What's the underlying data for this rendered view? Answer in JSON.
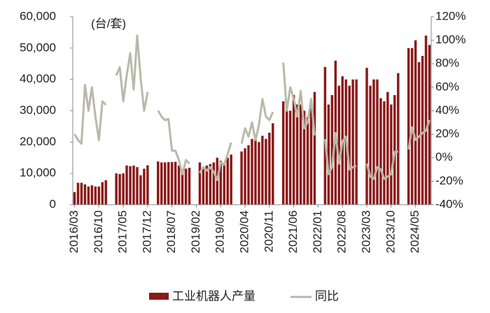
{
  "chart_data": {
    "type": "bar-line",
    "annotation": "(台/套)",
    "categories": [
      "2016/03",
      null,
      null,
      null,
      null,
      null,
      null,
      "2016/10",
      null,
      null,
      null,
      null,
      null,
      null,
      "2017/05",
      null,
      null,
      null,
      null,
      null,
      null,
      "2017/12",
      null,
      null,
      null,
      null,
      null,
      null,
      "2018/07",
      null,
      null,
      null,
      null,
      null,
      null,
      "2019/02",
      null,
      null,
      null,
      null,
      null,
      null,
      "2019/09",
      null,
      null,
      null,
      null,
      null,
      null,
      "2020/04",
      null,
      null,
      null,
      null,
      null,
      null,
      "2020/11",
      null,
      null,
      null,
      null,
      null,
      null,
      "2021/06",
      null,
      null,
      null,
      null,
      null,
      null,
      "2022/01",
      null,
      null,
      null,
      null,
      null,
      null,
      "2022/08",
      null,
      null,
      null,
      null,
      null,
      null,
      "2023/03",
      null,
      null,
      null,
      null,
      null,
      null,
      "2023/10",
      null,
      null,
      null,
      null,
      null,
      null,
      "2024/05",
      null,
      null,
      null,
      null
    ],
    "series": [
      {
        "name": "工业机器人产量",
        "color": "#8b1a1a",
        "type": "bar",
        "values": [
          4000,
          7000,
          7000,
          6500,
          5800,
          6200,
          5800,
          5800,
          7200,
          7800,
          null,
          null,
          10000,
          9800,
          10000,
          12500,
          12300,
          12500,
          12000,
          9400,
          11500,
          12600,
          null,
          null,
          13800,
          13500,
          13500,
          13600,
          13600,
          13700,
          12500,
          11000,
          11500,
          11800,
          null,
          null,
          13500,
          12000,
          12500,
          13000,
          13500,
          15000,
          14000,
          13000,
          15000,
          16000,
          null,
          null,
          17000,
          18000,
          19000,
          21000,
          21000,
          20000,
          22000,
          21000,
          23000,
          26000,
          null,
          null,
          33000,
          31000,
          30000,
          35000,
          32000,
          32000,
          30000,
          28000,
          31000,
          36000,
          null,
          null,
          44000,
          32000,
          35000,
          46000,
          38000,
          41000,
          40000,
          38000,
          40000,
          40000,
          null,
          null,
          43700,
          38000,
          40000,
          40000,
          34000,
          33000,
          36000,
          32000,
          35000,
          42000,
          null,
          null,
          50000,
          50000,
          52500,
          45500,
          47500,
          54000,
          51000
        ]
      },
      {
        "name": "同比",
        "color": "#b9b9a8",
        "type": "line",
        "axis": "y2",
        "values": [
          20,
          15,
          12,
          62,
          40,
          60,
          35,
          15,
          48,
          45,
          null,
          null,
          70,
          77,
          48,
          70,
          89,
          58,
          104,
          68,
          40,
          56,
          null,
          null,
          40,
          35,
          32,
          33,
          6,
          6,
          -2,
          -14,
          -2,
          -5,
          null,
          null,
          -13,
          -8,
          -11,
          -8,
          -12,
          -19,
          -4,
          -6,
          3,
          13,
          null,
          null,
          12,
          25,
          18,
          30,
          15,
          28,
          50,
          35,
          32,
          39,
          null,
          null,
          81,
          40,
          60,
          50,
          35,
          57,
          25,
          30,
          50,
          19,
          null,
          null,
          16,
          -14,
          -8,
          21,
          -5,
          14,
          18,
          -10,
          -8,
          -7,
          null,
          null,
          -5,
          -16,
          -18,
          -8,
          -10,
          -18,
          -16,
          -14,
          5,
          5,
          null,
          null,
          7,
          26,
          15,
          18,
          21,
          23,
          32
        ]
      }
    ],
    "ylim": [
      0,
      60000
    ],
    "yticks": [
      0,
      {
        "value": 10000,
        "label": "10,000"
      },
      {
        "value": 20000,
        "label": "20,000"
      },
      {
        "value": 30000,
        "label": "30,000"
      },
      {
        "value": 40000,
        "label": "40,000"
      },
      {
        "value": 50000,
        "label": "50,000"
      },
      {
        "value": 60000,
        "label": "60,000"
      }
    ],
    "y2lim": [
      -40,
      120
    ],
    "y2ticks": [
      {
        "value": -40,
        "label": "-40%"
      },
      {
        "value": -20,
        "label": "-20%"
      },
      {
        "value": 0,
        "label": "0%"
      },
      {
        "value": 20,
        "label": "20%"
      },
      {
        "value": 40,
        "label": "40%"
      },
      {
        "value": 60,
        "label": "60%"
      },
      {
        "value": 80,
        "label": "80%"
      },
      {
        "value": 100,
        "label": "100%"
      },
      {
        "value": 120,
        "label": "120%"
      }
    ],
    "legend": "bottom"
  }
}
